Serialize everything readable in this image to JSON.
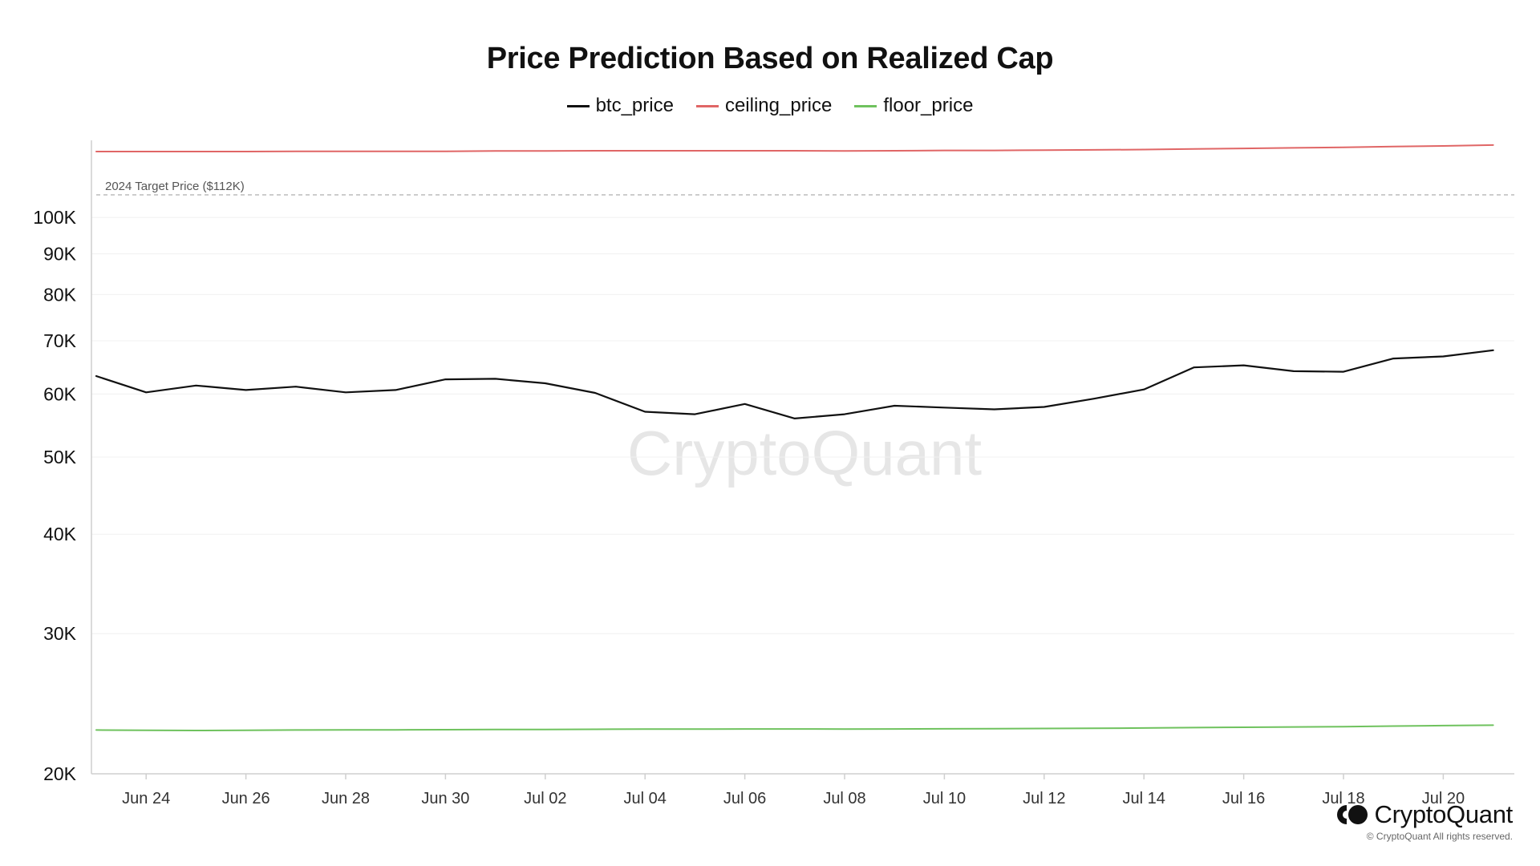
{
  "title": "Price Prediction Based on Realized Cap",
  "legend": [
    {
      "label": "btc_price",
      "color": "#111111"
    },
    {
      "label": "ceiling_price",
      "color": "#e06666"
    },
    {
      "label": "floor_price",
      "color": "#6fc25e"
    }
  ],
  "watermark": "CryptoQuant",
  "reference_line": {
    "label": "2024 Target Price ($112K)",
    "value": 112000,
    "style": "dashed",
    "color": "#bbbbbb"
  },
  "brand": {
    "name": "CryptoQuant",
    "copyright": "© CryptoQuant All rights reserved."
  },
  "chart_data": {
    "type": "line",
    "title": "Price Prediction Based on Realized Cap",
    "y_scale": "log",
    "ylim": [
      20000,
      125000
    ],
    "y_ticks": [
      {
        "value": 20000,
        "label": "20K"
      },
      {
        "value": 30000,
        "label": "30K"
      },
      {
        "value": 40000,
        "label": "40K"
      },
      {
        "value": 50000,
        "label": "50K"
      },
      {
        "value": 60000,
        "label": "60K"
      },
      {
        "value": 70000,
        "label": "70K"
      },
      {
        "value": 80000,
        "label": "80K"
      },
      {
        "value": 90000,
        "label": "90K"
      },
      {
        "value": 100000,
        "label": "100K"
      }
    ],
    "x_tick_labels": [
      "Jun 24",
      "Jun 26",
      "Jun 28",
      "Jun 30",
      "Jul 02",
      "Jul 04",
      "Jul 06",
      "Jul 08",
      "Jul 10",
      "Jul 12",
      "Jul 14",
      "Jul 16",
      "Jul 18",
      "Jul 20"
    ],
    "x": [
      "Jun 23",
      "Jun 24",
      "Jun 25",
      "Jun 26",
      "Jun 27",
      "Jun 28",
      "Jun 29",
      "Jun 30",
      "Jul 01",
      "Jul 02",
      "Jul 03",
      "Jul 04",
      "Jul 05",
      "Jul 06",
      "Jul 07",
      "Jul 08",
      "Jul 09",
      "Jul 10",
      "Jul 11",
      "Jul 12",
      "Jul 13",
      "Jul 14",
      "Jul 15",
      "Jul 16",
      "Jul 17",
      "Jul 18",
      "Jul 19",
      "Jul 20",
      "Jul 21"
    ],
    "grid": true,
    "legend_position": "top-center",
    "series": [
      {
        "name": "btc_price",
        "color": "#111111",
        "values": [
          63200,
          60300,
          61500,
          60700,
          61300,
          60300,
          60700,
          62600,
          62700,
          61900,
          60200,
          57000,
          56600,
          58300,
          55900,
          56600,
          58000,
          57700,
          57400,
          57800,
          59200,
          60800,
          64800,
          65200,
          64100,
          64000,
          66500,
          66900,
          68100
        ]
      },
      {
        "name": "ceiling_price",
        "color": "#e06666",
        "values": [
          121000,
          121000,
          121000,
          121000,
          121100,
          121100,
          121100,
          121100,
          121200,
          121200,
          121300,
          121300,
          121300,
          121300,
          121300,
          121200,
          121300,
          121400,
          121400,
          121500,
          121600,
          121700,
          121900,
          122100,
          122300,
          122500,
          122800,
          123000,
          123300
        ]
      },
      {
        "name": "floor_price",
        "color": "#6fc25e",
        "values": [
          22700,
          22680,
          22670,
          22680,
          22700,
          22710,
          22710,
          22720,
          22730,
          22740,
          22750,
          22760,
          22760,
          22770,
          22770,
          22760,
          22770,
          22780,
          22790,
          22800,
          22810,
          22830,
          22860,
          22880,
          22900,
          22920,
          22960,
          22990,
          23020
        ]
      }
    ]
  }
}
